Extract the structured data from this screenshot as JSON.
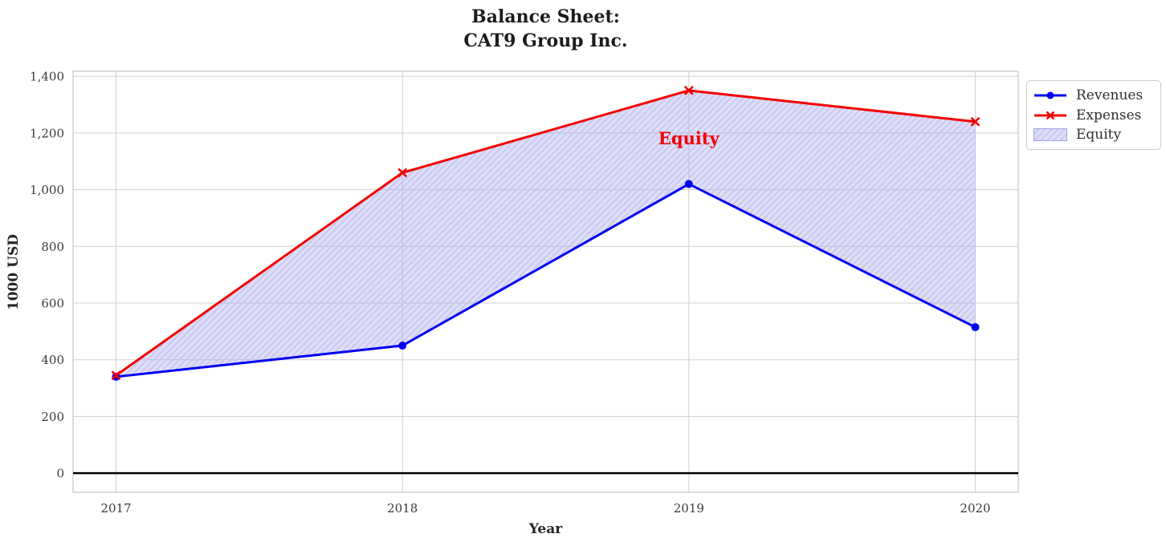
{
  "chart_data": {
    "type": "line",
    "title_lines": [
      "Balance Sheet:",
      "CAT9 Group Inc."
    ],
    "xlabel": "Year",
    "ylabel": "1000 USD",
    "x": [
      2017,
      2018,
      2019,
      2020
    ],
    "xtick_labels": [
      "2017",
      "2018",
      "2019",
      "2020"
    ],
    "yticks": [
      0,
      200,
      400,
      600,
      800,
      1000,
      1200,
      1400
    ],
    "ytick_labels": [
      "0",
      "200",
      "400",
      "600",
      "800",
      "1,000",
      "1,200",
      "1,400"
    ],
    "xlim": [
      2016.85,
      2020.15
    ],
    "ylim": [
      -67.5,
      1417.5
    ],
    "grid": true,
    "zero_line_y": 0,
    "series": [
      {
        "name": "Revenues",
        "color": "#0000f2",
        "marker": "circle",
        "values": [
          340,
          450,
          1020,
          515
        ]
      },
      {
        "name": "Expenses",
        "color": "#f20000",
        "marker": "x",
        "values": [
          345,
          1060,
          1350,
          1240
        ]
      }
    ],
    "fill": {
      "name": "Equity",
      "between": [
        "Revenues",
        "Expenses"
      ],
      "base_color_rgba": "rgba(136,136,232,0.28)",
      "hatch_color": "#c6c6ef",
      "edge_color": "#a2a2e6"
    },
    "annotation": {
      "text": "Equity",
      "x": 2019,
      "y": 1180,
      "color": "#f20000"
    },
    "legend": {
      "position": "outside upper right",
      "entries": [
        "Revenues",
        "Expenses",
        "Equity"
      ]
    },
    "colors": {
      "grid": "#cfcfcf",
      "frame": "#c4c4c4",
      "zero_line": "#000000",
      "tick_text": "#3a3a3a"
    }
  }
}
